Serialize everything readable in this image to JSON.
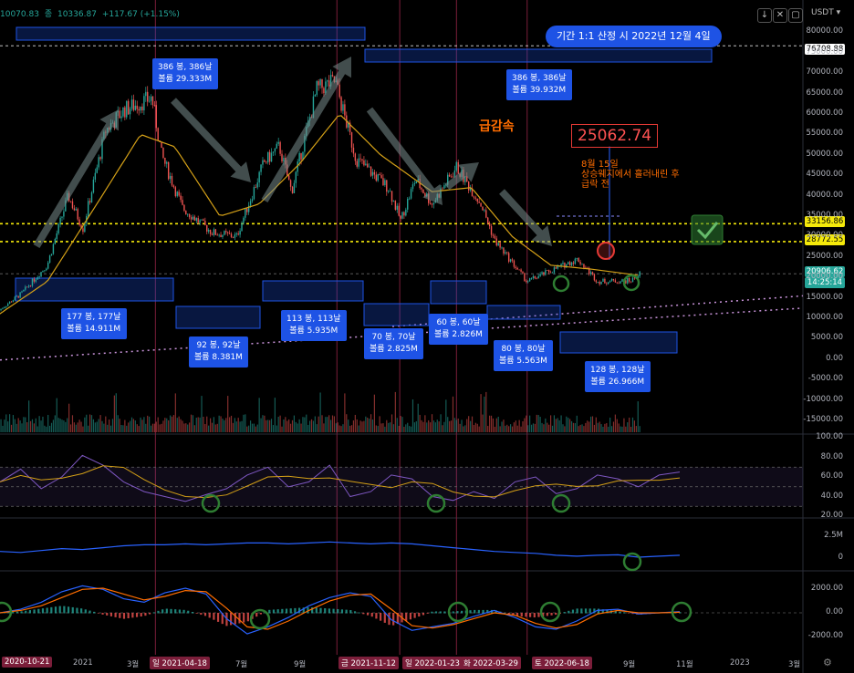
{
  "header": {
    "ohlc": "10070.83",
    "close_label": "종",
    "close": "10336.87",
    "change": "+117.67 (+1.15%)"
  },
  "currency": "USDT",
  "colors": {
    "up": "#26a69a",
    "down": "#ef5350",
    "box": "#1e53e5",
    "yellow": "#f5e90a",
    "accent_red": "#e53935",
    "orange": "#ff6d00"
  },
  "annotations": {
    "period_label": "기간 1:1 산정 시 2022년 12월 4일",
    "big_price": "25062.74",
    "sharp_drop": "급감속",
    "note_line1": "8월 15일",
    "note_line2": "상승웨지에서 흘러내린 후",
    "note_line3": "급락 전"
  },
  "boxes": [
    {
      "line1": "386 봉, 386날",
      "line2": "볼륨 29.333M"
    },
    {
      "line1": "386 봉, 386날",
      "line2": "볼륨 39.932M"
    },
    {
      "line1": "177 봉, 177날",
      "line2": "볼륨 14.911M"
    },
    {
      "line1": "92 봉, 92날",
      "line2": "볼륨 8.381M"
    },
    {
      "line1": "113 봉, 113날",
      "line2": "볼륨 5.935M"
    },
    {
      "line1": "70 봉, 70날",
      "line2": "볼륨 2.825M"
    },
    {
      "line1": "60 봉, 60날",
      "line2": "볼륨 2.826M"
    },
    {
      "line1": "80 봉, 80날",
      "line2": "볼륨 5.563M"
    },
    {
      "line1": "128 봉, 128날",
      "line2": "볼륨 26.966M"
    }
  ],
  "price_tags": {
    "top": "76708.88",
    "y1": "33156.86",
    "y2": "28772.55",
    "last": "20906.62",
    "countdown": "14:25:14"
  },
  "chart_data": [
    {
      "type": "candlestick",
      "title": "",
      "ylabel": "USDT",
      "ylim": [
        -17000,
        83000
      ],
      "y_ticks": [
        "80000.00",
        "75000.00",
        "70000.00",
        "65000.00",
        "60000.00",
        "55000.00",
        "50000.00",
        "45000.00",
        "40000.00",
        "35000.00",
        "30000.00",
        "25000.00",
        "20000.00",
        "15000.00",
        "10000.00",
        "5000.00",
        "0.00",
        "-5000.00",
        "-10000.00",
        "-15000.00"
      ],
      "x_ticks": [
        "2020-10-21",
        "2021",
        "3월",
        "2021-04-18",
        "7월",
        "9월",
        "2021-11-12",
        "2022-01-23",
        "2022-03-29",
        "2022-06-18",
        "9월",
        "11월",
        "2023",
        "3월"
      ],
      "x_ticks_highlighted": [
        "2020-10-21",
        "2021-04-18",
        "2021-11-12",
        "2022-01-23",
        "2022-03-29",
        "2022-06-18"
      ],
      "x_tick_prefixes": {
        "2021-04-18": "일",
        "2021-11-12": "금",
        "2022-01-23": "일",
        "2022-03-29": "화",
        "2022-06-18": "토"
      },
      "close_path": [
        [
          "2020-10-21",
          12000
        ],
        [
          "2020-11-15",
          16000
        ],
        [
          "2020-12-15",
          23000
        ],
        [
          "2021-01-08",
          40000
        ],
        [
          "2021-01-25",
          32000
        ],
        [
          "2021-02-20",
          56000
        ],
        [
          "2021-03-13",
          61000
        ],
        [
          "2021-04-14",
          64000
        ],
        [
          "2021-04-25",
          50000
        ],
        [
          "2021-05-19",
          37000
        ],
        [
          "2021-06-22",
          31000
        ],
        [
          "2021-07-20",
          30000
        ],
        [
          "2021-08-20",
          48000
        ],
        [
          "2021-09-07",
          52000
        ],
        [
          "2021-09-21",
          41000
        ],
        [
          "2021-10-20",
          66000
        ],
        [
          "2021-11-10",
          68000
        ],
        [
          "2021-12-04",
          49000
        ],
        [
          "2022-01-10",
          42000
        ],
        [
          "2022-01-24",
          34000
        ],
        [
          "2022-02-10",
          44000
        ],
        [
          "2022-03-01",
          38000
        ],
        [
          "2022-03-29",
          47000
        ],
        [
          "2022-04-26",
          38000
        ],
        [
          "2022-05-12",
          29000
        ],
        [
          "2022-06-18",
          19000
        ],
        [
          "2022-07-08",
          21000
        ],
        [
          "2022-08-15",
          24500
        ],
        [
          "2022-09-07",
          19000
        ],
        [
          "2022-10-15",
          19200
        ],
        [
          "2022-10-25",
          20900
        ]
      ],
      "ma_path": [
        [
          "2020-10-21",
          11000
        ],
        [
          "2020-12-15",
          19000
        ],
        [
          "2021-02-10",
          38000
        ],
        [
          "2021-04-01",
          55000
        ],
        [
          "2021-05-10",
          52000
        ],
        [
          "2021-07-01",
          35000
        ],
        [
          "2021-08-15",
          38000
        ],
        [
          "2021-10-01",
          48000
        ],
        [
          "2021-11-15",
          60000
        ],
        [
          "2022-01-01",
          50000
        ],
        [
          "2022-03-01",
          41000
        ],
        [
          "2022-04-15",
          42000
        ],
        [
          "2022-06-01",
          30000
        ],
        [
          "2022-07-15",
          23000
        ],
        [
          "2022-09-01",
          22000
        ],
        [
          "2022-10-25",
          20500
        ]
      ],
      "horizontal_levels": [
        76708.88,
        33156.86,
        28772.55,
        20906.62
      ]
    },
    {
      "type": "line",
      "title": "",
      "ylim": [
        20,
        100
      ],
      "y_ticks": [
        "100.00",
        "80.00",
        "60.00",
        "40.00",
        "20.00"
      ],
      "band": [
        30,
        70
      ],
      "series": [
        {
          "values": [
            55,
            68,
            48,
            60,
            82,
            72,
            55,
            45,
            40,
            35,
            42,
            48,
            62,
            70,
            50,
            55,
            72,
            40,
            45,
            62,
            58,
            40,
            36,
            45,
            38,
            55,
            60,
            43,
            48,
            62,
            58,
            50,
            62,
            65
          ]
        }
      ]
    },
    {
      "type": "line",
      "title": "",
      "y_ticks": [
        "2.5M",
        "0"
      ],
      "series": [
        {
          "values": [
            0.7,
            0.6,
            0.8,
            1.0,
            0.9,
            1.1,
            1.3,
            1.4,
            1.4,
            1.5,
            1.4,
            1.5,
            1.6,
            1.6,
            1.5,
            1.6,
            1.7,
            1.6,
            1.5,
            1.6,
            1.5,
            1.3,
            1.1,
            0.9,
            0.7,
            0.6,
            0.5,
            0.3,
            0.2,
            0.3,
            0.35,
            0.1,
            0.2,
            0.3
          ]
        }
      ]
    },
    {
      "type": "line",
      "title": "",
      "ylim": [
        -2800,
        2800
      ],
      "y_ticks": [
        "2000.00",
        "0.00",
        "-2000.00"
      ],
      "series": [
        {
          "values": [
            0,
            300,
            900,
            1800,
            2300,
            2000,
            1200,
            900,
            1700,
            2100,
            1600,
            -500,
            -1800,
            -1200,
            -400,
            600,
            1300,
            1700,
            1400,
            -600,
            -1500,
            -1200,
            -900,
            -300,
            200,
            -400,
            -1200,
            -1400,
            -700,
            200,
            300,
            -100,
            0,
            100
          ]
        },
        {
          "values": [
            0,
            200,
            600,
            1300,
            2000,
            2100,
            1600,
            1100,
            1400,
            1900,
            1800,
            400,
            -1200,
            -1400,
            -700,
            200,
            1000,
            1500,
            1600,
            300,
            -1100,
            -1300,
            -1000,
            -500,
            0,
            -200,
            -900,
            -1300,
            -1000,
            -100,
            200,
            0,
            0,
            50
          ]
        }
      ]
    }
  ]
}
